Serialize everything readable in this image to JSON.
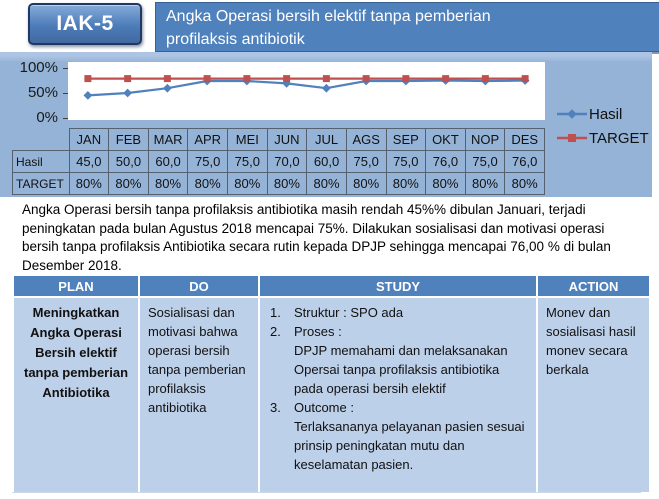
{
  "slide": {
    "badge": "IAK-5",
    "title": "Angka Operasi bersih elektif tanpa pemberian profilaksis antibiotik",
    "title_line1": "Angka Operasi bersih elektif tanpa pemberian",
    "title_line2": "profilaksis antibiotik"
  },
  "chart_data": {
    "type": "line",
    "categories": [
      "JAN",
      "FEB",
      "MAR",
      "APR",
      "MEI",
      "JUN",
      "JUL",
      "AGS",
      "SEP",
      "OKT",
      "NOP",
      "DES"
    ],
    "series": [
      {
        "name": "Hasil",
        "values": [
          45,
          50,
          60,
          75,
          75,
          70,
          60,
          75,
          75,
          76,
          75,
          76
        ],
        "color": "#4f81bd",
        "marker": "diamond"
      },
      {
        "name": "TARGET",
        "values": [
          80,
          80,
          80,
          80,
          80,
          80,
          80,
          80,
          80,
          80,
          80,
          80
        ],
        "color": "#c0504d",
        "marker": "square"
      }
    ],
    "title": "",
    "xlabel": "",
    "ylabel": "",
    "ylim": [
      0,
      100
    ],
    "ytick_labels": [
      "100%",
      "50%",
      "0%"
    ],
    "grid": false,
    "legend_position": "right"
  },
  "data_table": {
    "columns": [
      "JAN",
      "FEB",
      "MAR",
      "APR",
      "MEI",
      "JUN",
      "JUL",
      "AGS",
      "SEP",
      "OKT",
      "NOP",
      "DES"
    ],
    "rows": [
      {
        "label": "Hasil",
        "values": [
          "45,0",
          "50,0",
          "60,0",
          "75,0",
          "75,0",
          "70,0",
          "60,0",
          "75,0",
          "75,0",
          "76,0",
          "75,0",
          "76,0"
        ]
      },
      {
        "label": "TARGET",
        "values": [
          "80%",
          "80%",
          "80%",
          "80%",
          "80%",
          "80%",
          "80%",
          "80%",
          "80%",
          "80%",
          "80%",
          "80%"
        ]
      }
    ]
  },
  "narrative": "Angka Operasi bersih tanpa profilaksis antibiotika masih rendah 45%% dibulan Januari, terjadi peningkatan pada bulan  Agustus 2018  mencapai 75%. Dilakukan sosialisasi dan motivasi operasi bersih tanpa profilaksis Antibiotika secara rutin kepada DPJP sehingga mencapai 76,00  % di bulan Desember 2018.",
  "pdsa": {
    "headers": [
      "PLAN",
      "DO",
      "STUDY",
      "ACTION"
    ],
    "plan": "Meningkatkan Angka Operasi Bersih elektif tanpa pemberian Antibiotika",
    "do": "Sosialisasi  dan motivasi bahwa operasi bersih tanpa pemberian profilaksis antibiotika",
    "study": [
      {
        "num": "1.",
        "title": "Struktur : SPO ada",
        "detail": ""
      },
      {
        "num": "2.",
        "title": "Proses :",
        "detail": "DPJP memahami dan melaksanakan Opersai tanpa profilaksis antibiotika pada operasi bersih elektif"
      },
      {
        "num": "3.",
        "title": "Outcome :",
        "detail": "Terlaksananya pelayanan pasien sesuai prinsip peningkatan mutu dan keselamatan pasien."
      }
    ],
    "action": "Monev dan sosialisasi hasil monev secara berkala"
  },
  "colors": {
    "accent_blue": "#4f81bd",
    "panel_blue": "#95b3d7",
    "light_blue": "#bdd0e9",
    "badge_border": "#1f3864",
    "hasil_line": "#4f81bd",
    "target_line": "#c0504d"
  }
}
